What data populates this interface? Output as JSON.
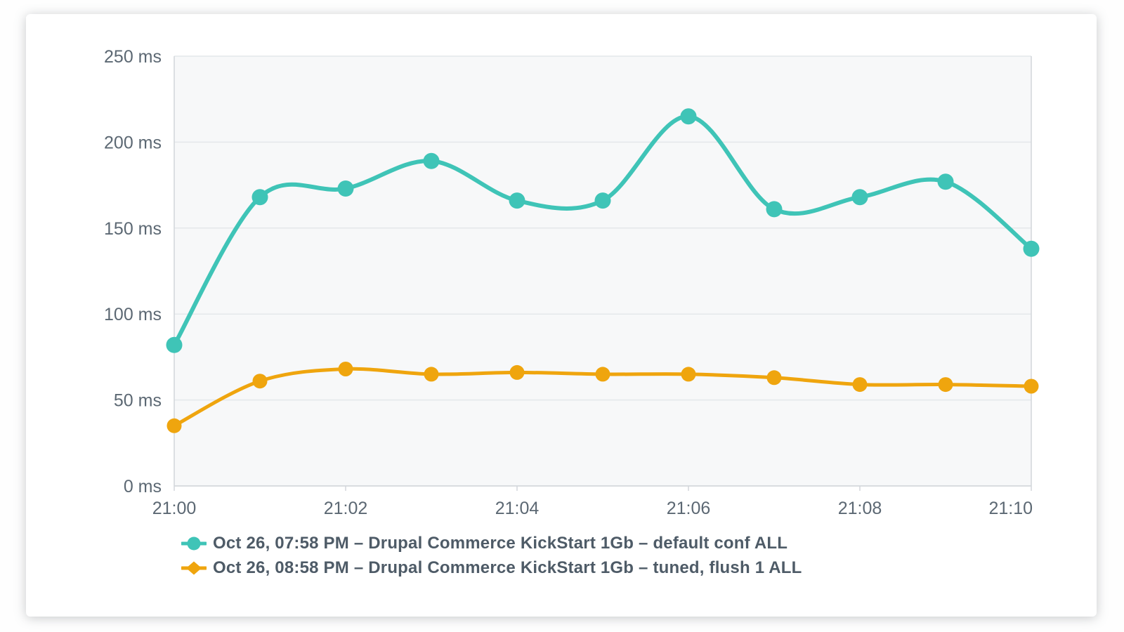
{
  "card": {
    "background": "#ffffff"
  },
  "colors": {
    "page_background": "#fefefe",
    "plot_background": "#f7f8f9",
    "gridline": "#e4e7ea",
    "plot_border": "#d2d6da",
    "axis_text": "#5c6873",
    "legend_text": "#4e5b67",
    "series_teal": "#3fc4b7",
    "series_orange": "#efa50e"
  },
  "chart_data": {
    "type": "line",
    "title": "",
    "xlabel": "",
    "ylabel": "",
    "unit": "ms",
    "grid": "horizontal",
    "legend_position": "bottom-left",
    "x_times": [
      "21:00",
      "21:01",
      "21:02",
      "21:03",
      "21:04",
      "21:05",
      "21:06",
      "21:07",
      "21:08",
      "21:09",
      "21:10"
    ],
    "x_minutes": [
      0,
      1,
      2,
      3,
      4,
      5,
      6,
      7,
      8,
      9,
      10
    ],
    "x_range_minutes": [
      0,
      10
    ],
    "x_tick_minutes": [
      0,
      2,
      4,
      6,
      8,
      10
    ],
    "x_tick_labels": [
      "21:00",
      "21:02",
      "21:04",
      "21:06",
      "21:08",
      "21:10"
    ],
    "y_range": [
      0,
      250
    ],
    "y_ticks": [
      0,
      50,
      100,
      150,
      200,
      250
    ],
    "y_tick_labels": [
      "0 ms",
      "50 ms",
      "100 ms",
      "150 ms",
      "200 ms",
      "250 ms"
    ],
    "series": [
      {
        "name": "Oct 26, 07:58 PM – Drupal Commerce KickStart 1Gb – default conf ALL",
        "color": "#3fc4b7",
        "marker": "circle",
        "line_width": 6,
        "values": [
          82,
          168,
          173,
          189,
          166,
          166,
          215,
          161,
          168,
          177,
          138
        ]
      },
      {
        "name": "Oct 26, 08:58 PM – Drupal Commerce KickStart 1Gb – tuned, flush 1 ALL",
        "color": "#efa50e",
        "marker": "diamond",
        "line_width": 5,
        "values": [
          35,
          61,
          68,
          65,
          66,
          65,
          65,
          63,
          59,
          59,
          58
        ]
      }
    ]
  }
}
